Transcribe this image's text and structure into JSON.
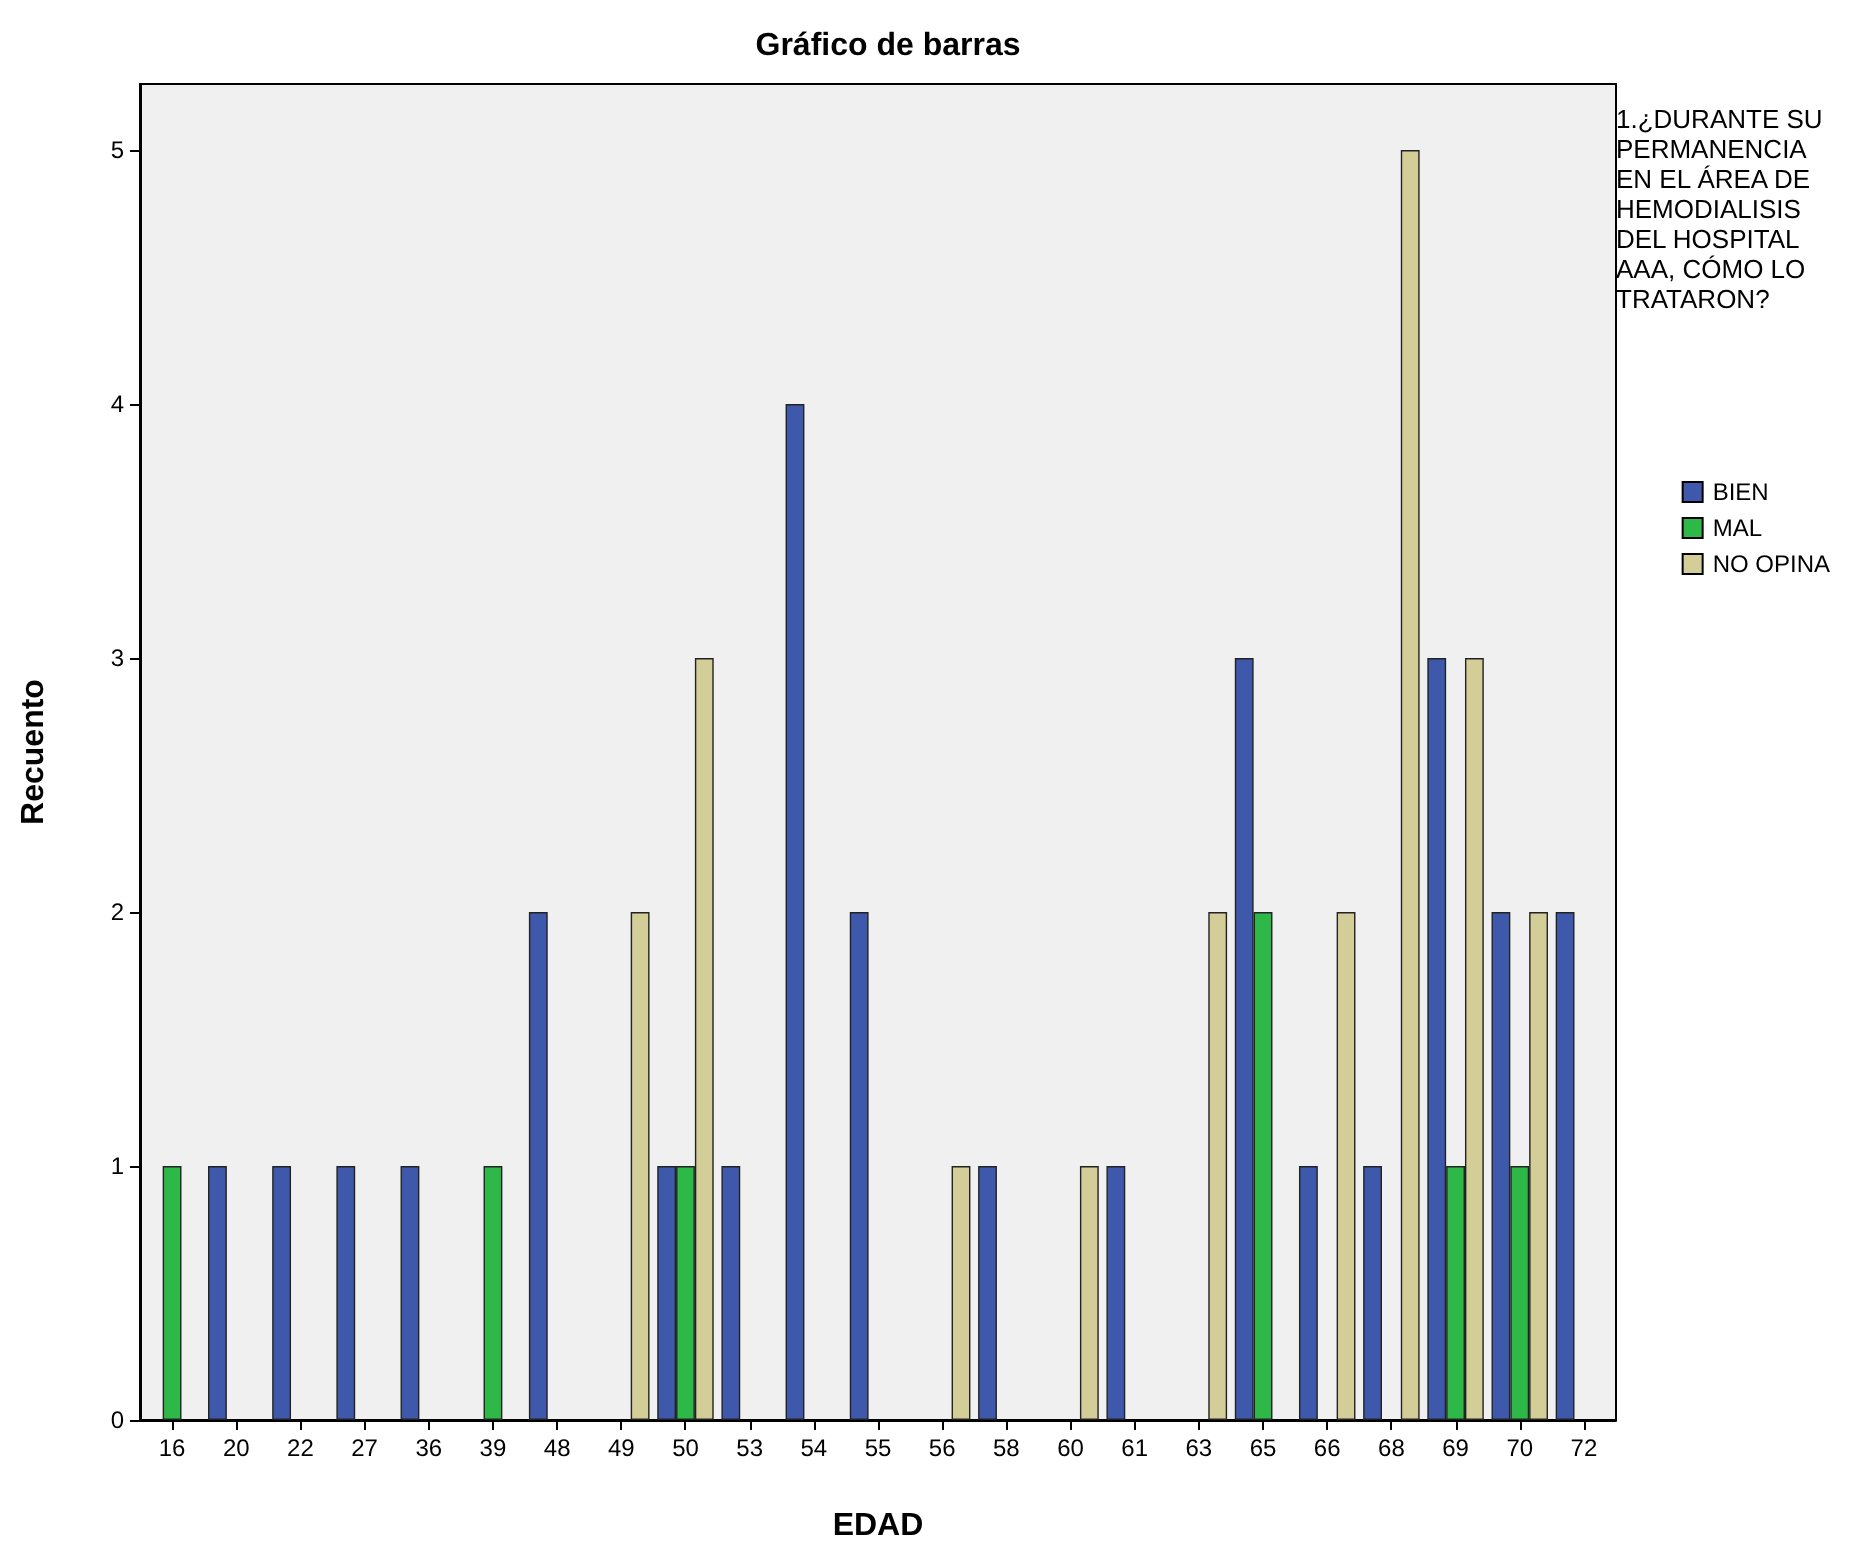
{
  "chart_data": {
    "type": "bar",
    "title": "Gráfico de barras",
    "xlabel": "EDAD",
    "ylabel": "Recuento",
    "legend_title": "1.¿DURANTE SU PERMANENCIA EN EL ÁREA DE HEMODIALISIS DEL HOSPITAL AAA, CÓMO LO TRATARON?",
    "categories": [
      "16",
      "20",
      "22",
      "27",
      "36",
      "39",
      "48",
      "49",
      "50",
      "53",
      "54",
      "55",
      "56",
      "58",
      "60",
      "61",
      "63",
      "65",
      "66",
      "68",
      "69",
      "70",
      "72"
    ],
    "series": [
      {
        "name": "BIEN",
        "color": "#3e58ac",
        "values": [
          null,
          1,
          1,
          1,
          1,
          null,
          2,
          null,
          1,
          1,
          4,
          2,
          null,
          1,
          null,
          1,
          null,
          3,
          1,
          1,
          3,
          2,
          2
        ]
      },
      {
        "name": "MAL",
        "color": "#2eb848",
        "values": [
          1,
          null,
          null,
          null,
          null,
          1,
          null,
          null,
          1,
          null,
          null,
          null,
          null,
          null,
          null,
          null,
          null,
          2,
          null,
          null,
          1,
          1,
          null
        ]
      },
      {
        "name": "NO OPINA",
        "color": "#d3ce97",
        "values": [
          null,
          null,
          null,
          null,
          null,
          null,
          null,
          2,
          3,
          null,
          null,
          null,
          1,
          null,
          1,
          null,
          2,
          null,
          2,
          5,
          3,
          2,
          null
        ]
      }
    ],
    "ylim": [
      0,
      5.26
    ],
    "yticks": [
      0,
      1,
      2,
      3,
      4,
      5
    ],
    "grid": false,
    "legend": "right"
  }
}
